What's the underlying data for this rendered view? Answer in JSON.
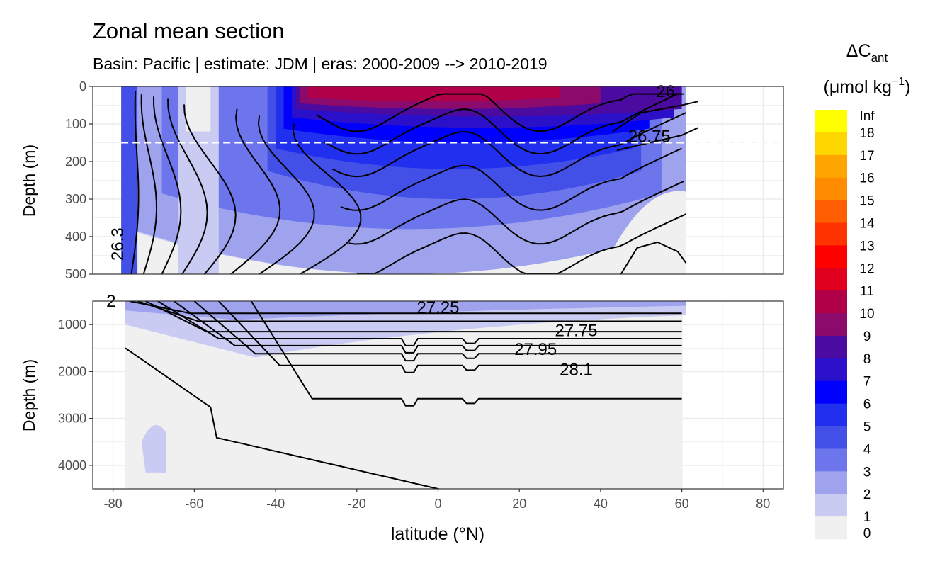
{
  "chart_data": {
    "type": "filled-contour",
    "title": "Zonal mean section",
    "subtitle": "Basin: Pacific | estimate: JDM  | eras: 2000-2009 --> 2010-2019",
    "xlabel": "latitude (°N)",
    "ylabel_top": "Depth (m)",
    "ylabel_bottom": "Depth (m)",
    "xlim": [
      -85,
      85
    ],
    "x_ticks": [
      -80,
      -60,
      -40,
      -20,
      0,
      20,
      40,
      60,
      80
    ],
    "panels": [
      {
        "name": "upper",
        "ylim": [
          500,
          0
        ],
        "y_ticks": [
          0,
          100,
          200,
          300,
          400,
          500
        ],
        "reference_line_depth": 150
      },
      {
        "name": "lower",
        "ylim": [
          4500,
          500
        ],
        "y_ticks": [
          1000,
          2000,
          3000,
          4000
        ]
      }
    ],
    "legend": {
      "title_prefix": "ΔC",
      "title_sub": "ant",
      "unit_prefix": "(μmol kg",
      "unit_sup": "−1",
      "unit_suffix": ")",
      "placement": "right",
      "breaks": [
        "Inf",
        "18",
        "17",
        "16",
        "15",
        "14",
        "13",
        "12",
        "11",
        "10",
        "9",
        "8",
        "7",
        "6",
        "5",
        "4",
        "3",
        "2",
        "1",
        "0"
      ],
      "colors": [
        "#FFFF00",
        "#FFD700",
        "#FFA500",
        "#FF8C00",
        "#FF5F00",
        "#FF3300",
        "#FF0000",
        "#E0001E",
        "#B00048",
        "#8B0A6B",
        "#4B0BA0",
        "#2A10C8",
        "#0000FF",
        "#2030EE",
        "#4350E8",
        "#6C75EC",
        "#9FA3EE",
        "#CACBF2",
        "#F0F0F0"
      ]
    },
    "contour_labels": [
      {
        "panel": "upper",
        "text": "26",
        "lat": 56,
        "depth": 28
      },
      {
        "panel": "upper",
        "text": "26.75",
        "lat": 52,
        "depth": 148
      },
      {
        "panel": "upper",
        "text": "26.3",
        "lat": -77.5,
        "depth": 420
      },
      {
        "panel": "lower",
        "text": "27.25",
        "lat": 0,
        "depth": 760
      },
      {
        "panel": "lower",
        "text": "27.75",
        "lat": 34,
        "depth": 1250
      },
      {
        "panel": "lower",
        "text": "27.95",
        "lat": 24,
        "depth": 1650
      },
      {
        "panel": "lower",
        "text": "28.1",
        "lat": 34,
        "depth": 2080
      },
      {
        "panel": "lower",
        "text": "2",
        "lat": -80.5,
        "depth": 620
      }
    ],
    "upper_isopycnals_deep_lat": [
      -75.5,
      -72.5,
      -68,
      -63,
      -57.5,
      -51,
      -44,
      -34
    ],
    "upper_isopycnals_mixed_depth": [
      40,
      70,
      90,
      110,
      160,
      200,
      260,
      330
    ],
    "lower_isopycnals_depth": [
      760,
      930,
      1150,
      1300,
      1450,
      1620,
      1870,
      2580
    ],
    "lower_isopycnals_south_lat": [
      -76,
      -74,
      -72,
      -69,
      -65,
      -60,
      -54,
      -46
    ],
    "bottom_line_depth": 4100,
    "upper_fill_bands": [
      {
        "color": "#CACBF2",
        "top": 0,
        "bot": 500,
        "lat0": -78,
        "lat1": 61
      },
      {
        "color": "#9FA3EE",
        "top": 0,
        "bot": 500,
        "lat0": -77,
        "lat1": 61
      },
      {
        "color": "#6C75EC",
        "top": 0,
        "bot": 380,
        "lat0": -68,
        "lat1": 55
      },
      {
        "color": "#4350E8",
        "top": 0,
        "bot": 300,
        "lat0": -42,
        "lat1": 50
      },
      {
        "color": "#2030EE",
        "top": 0,
        "bot": 220,
        "lat0": -40,
        "lat1": 48
      },
      {
        "color": "#0000FF",
        "top": 0,
        "bot": 150,
        "lat0": -38,
        "lat1": 52
      },
      {
        "color": "#2A10C8",
        "top": 0,
        "bot": 110,
        "lat0": -36,
        "lat1": 58
      },
      {
        "color": "#4B0BA0",
        "top": 0,
        "bot": 80,
        "lat0": -35,
        "lat1": 60
      },
      {
        "color": "#8B0A6B",
        "top": 0,
        "bot": 60,
        "lat0": -34,
        "lat1": 40
      },
      {
        "color": "#B00048",
        "top": 0,
        "bot": 40,
        "lat0": -32,
        "lat1": 30
      }
    ]
  }
}
